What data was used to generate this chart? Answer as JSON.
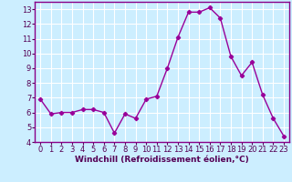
{
  "x": [
    0,
    1,
    2,
    3,
    4,
    5,
    6,
    7,
    8,
    9,
    10,
    11,
    12,
    13,
    14,
    15,
    16,
    17,
    18,
    19,
    20,
    21,
    22,
    23
  ],
  "y": [
    6.9,
    5.9,
    6.0,
    6.0,
    6.2,
    6.2,
    6.0,
    4.6,
    5.9,
    5.6,
    6.9,
    7.1,
    9.0,
    11.1,
    12.8,
    12.8,
    13.1,
    12.4,
    9.8,
    8.5,
    9.4,
    7.2,
    5.6,
    4.4
  ],
  "line_color": "#990099",
  "marker": "D",
  "markersize": 2.2,
  "linewidth": 1.0,
  "bg_color": "#cceeff",
  "grid_color": "#ffffff",
  "xlabel": "Windchill (Refroidissement éolien,°C)",
  "xlabel_fontsize": 6.5,
  "tick_fontsize": 6.0,
  "ylim": [
    4,
    13.5
  ],
  "yticks": [
    4,
    5,
    6,
    7,
    8,
    9,
    10,
    11,
    12,
    13
  ],
  "xticks": [
    0,
    1,
    2,
    3,
    4,
    5,
    6,
    7,
    8,
    9,
    10,
    11,
    12,
    13,
    14,
    15,
    16,
    17,
    18,
    19,
    20,
    21,
    22,
    23
  ],
  "spine_color": "#880088",
  "xlim_left": -0.5,
  "xlim_right": 23.5
}
